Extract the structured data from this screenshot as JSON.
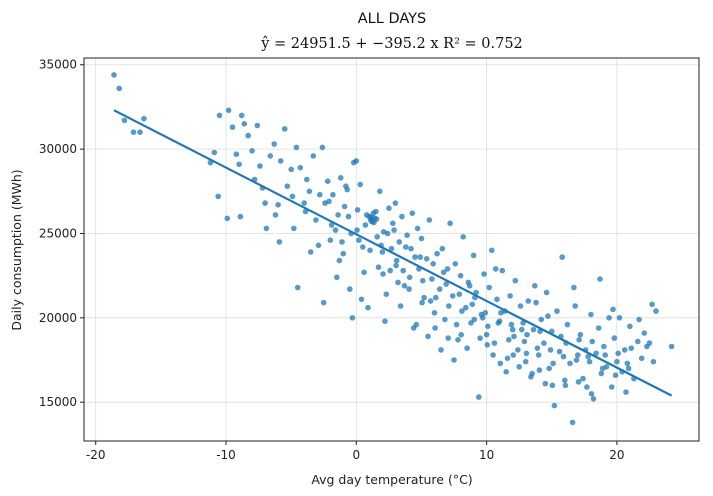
{
  "chart_data": {
    "type": "scatter",
    "title": "ALL DAYS",
    "subtitle": "ŷ = 24951.5 + −395.2 x    R² = 0.752",
    "xlabel": "Avg day temperature (°C)",
    "ylabel": "Daily consumption (MWh)",
    "xlim": [
      -20.9,
      26.3
    ],
    "ylim": [
      12700,
      35400
    ],
    "xticks": [
      -20,
      -10,
      0,
      10,
      20
    ],
    "yticks": [
      15000,
      20000,
      25000,
      30000,
      35000
    ],
    "grid": true,
    "point_color": "#1f77b4",
    "line_color": "#1f77b4",
    "fit": {
      "intercept": 24951.5,
      "slope": -395.2,
      "r2": 0.752,
      "x_range": [
        -18.6,
        24.2
      ]
    },
    "points": [
      [
        -18.6,
        34400
      ],
      [
        -18.2,
        33600
      ],
      [
        -17.8,
        31700
      ],
      [
        -17.1,
        31000
      ],
      [
        -16.6,
        31000
      ],
      [
        -16.3,
        31800
      ],
      [
        -11.2,
        29200
      ],
      [
        -10.9,
        29800
      ],
      [
        -10.5,
        32000
      ],
      [
        -10.6,
        27200
      ],
      [
        -9.8,
        32300
      ],
      [
        -9.9,
        25900
      ],
      [
        -9.5,
        31300
      ],
      [
        -9.2,
        29700
      ],
      [
        -9.0,
        29100
      ],
      [
        -8.8,
        32000
      ],
      [
        -8.6,
        31500
      ],
      [
        -8.3,
        30800
      ],
      [
        -8.0,
        29900
      ],
      [
        -7.8,
        28200
      ],
      [
        -7.6,
        31400
      ],
      [
        -7.4,
        29000
      ],
      [
        -7.0,
        26800
      ],
      [
        -6.9,
        25300
      ],
      [
        -6.6,
        29600
      ],
      [
        -6.3,
        30300
      ],
      [
        -6.0,
        26700
      ],
      [
        -5.8,
        29300
      ],
      [
        -5.5,
        31200
      ],
      [
        -5.3,
        27800
      ],
      [
        -5.0,
        28800
      ],
      [
        -4.8,
        25300
      ],
      [
        -4.6,
        30100
      ],
      [
        -4.3,
        28900
      ],
      [
        -4.0,
        26800
      ],
      [
        -3.8,
        28200
      ],
      [
        -3.6,
        27500
      ],
      [
        -3.3,
        29600
      ],
      [
        -3.1,
        25800
      ],
      [
        -2.8,
        27300
      ],
      [
        -2.6,
        30100
      ],
      [
        -2.4,
        26800
      ],
      [
        -2.2,
        28100
      ],
      [
        -2.0,
        24600
      ],
      [
        -1.8,
        27300
      ],
      [
        -1.6,
        25200
      ],
      [
        -1.4,
        26100
      ],
      [
        -1.2,
        28300
      ],
      [
        -1.0,
        23800
      ],
      [
        -0.8,
        27800
      ],
      [
        -0.6,
        26000
      ],
      [
        -0.4,
        25000
      ],
      [
        -0.2,
        29200
      ],
      [
        0.0,
        29300
      ],
      [
        0.1,
        26400
      ],
      [
        0.3,
        27900
      ],
      [
        0.5,
        24200
      ],
      [
        0.6,
        22700
      ],
      [
        0.8,
        26100
      ],
      [
        1.0,
        26000
      ],
      [
        1.1,
        25800
      ],
      [
        1.2,
        25700
      ],
      [
        1.3,
        26200
      ],
      [
        1.4,
        25900
      ],
      [
        1.5,
        26300
      ],
      [
        1.6,
        24800
      ],
      [
        1.8,
        27500
      ],
      [
        2.0,
        23900
      ],
      [
        2.1,
        25100
      ],
      [
        2.3,
        21400
      ],
      [
        2.5,
        26500
      ],
      [
        2.6,
        22800
      ],
      [
        2.8,
        25600
      ],
      [
        3.0,
        26800
      ],
      [
        3.1,
        23400
      ],
      [
        3.3,
        24500
      ],
      [
        3.5,
        26000
      ],
      [
        3.7,
        21900
      ],
      [
        3.9,
        24900
      ],
      [
        4.1,
        22400
      ],
      [
        4.3,
        26200
      ],
      [
        4.5,
        23600
      ],
      [
        4.6,
        19600
      ],
      [
        4.8,
        22900
      ],
      [
        5.0,
        24700
      ],
      [
        5.2,
        21200
      ],
      [
        5.4,
        23500
      ],
      [
        5.6,
        25800
      ],
      [
        5.8,
        22300
      ],
      [
        6.0,
        20300
      ],
      [
        6.2,
        23800
      ],
      [
        6.4,
        21700
      ],
      [
        6.6,
        24100
      ],
      [
        6.8,
        19900
      ],
      [
        7.0,
        22900
      ],
      [
        7.2,
        25600
      ],
      [
        7.4,
        21300
      ],
      [
        7.6,
        23200
      ],
      [
        7.8,
        18700
      ],
      [
        8.0,
        22500
      ],
      [
        8.2,
        24800
      ],
      [
        8.4,
        20600
      ],
      [
        8.6,
        22100
      ],
      [
        8.8,
        19700
      ],
      [
        9.0,
        23700
      ],
      [
        9.2,
        21500
      ],
      [
        9.4,
        15300
      ],
      [
        9.6,
        20200
      ],
      [
        9.8,
        22600
      ],
      [
        10.0,
        19000
      ],
      [
        10.2,
        21800
      ],
      [
        10.4,
        24000
      ],
      [
        10.6,
        18500
      ],
      [
        10.8,
        21100
      ],
      [
        11.0,
        19800
      ],
      [
        11.2,
        22800
      ],
      [
        11.4,
        20400
      ],
      [
        11.6,
        17600
      ],
      [
        11.8,
        21300
      ],
      [
        12.0,
        19300
      ],
      [
        12.2,
        22200
      ],
      [
        12.4,
        18100
      ],
      [
        12.6,
        20700
      ],
      [
        12.8,
        19700
      ],
      [
        13.0,
        17400
      ],
      [
        13.2,
        21000
      ],
      [
        13.4,
        16500
      ],
      [
        13.6,
        19300
      ],
      [
        13.8,
        20900
      ],
      [
        14.0,
        17800
      ],
      [
        14.2,
        19900
      ],
      [
        14.4,
        18500
      ],
      [
        14.6,
        21500
      ],
      [
        14.8,
        17000
      ],
      [
        15.0,
        19200
      ],
      [
        15.2,
        14800
      ],
      [
        15.4,
        20400
      ],
      [
        15.6,
        18000
      ],
      [
        15.8,
        23600
      ],
      [
        16.0,
        16300
      ],
      [
        16.2,
        19600
      ],
      [
        16.4,
        17300
      ],
      [
        16.6,
        13800
      ],
      [
        16.8,
        20700
      ],
      [
        17.0,
        17800
      ],
      [
        17.2,
        19000
      ],
      [
        17.4,
        16400
      ],
      [
        17.6,
        18100
      ],
      [
        17.8,
        17700
      ],
      [
        18.0,
        20200
      ],
      [
        18.2,
        15200
      ],
      [
        18.4,
        17900
      ],
      [
        18.6,
        19400
      ],
      [
        18.8,
        16700
      ],
      [
        19.0,
        18300
      ],
      [
        19.2,
        17100
      ],
      [
        19.4,
        20000
      ],
      [
        19.6,
        15900
      ],
      [
        19.8,
        18800
      ],
      [
        20.0,
        17400
      ],
      [
        20.2,
        20000
      ],
      [
        20.4,
        16800
      ],
      [
        20.6,
        18100
      ],
      [
        20.8,
        17300
      ],
      [
        21.0,
        19500
      ],
      [
        21.3,
        16400
      ],
      [
        21.6,
        18600
      ],
      [
        21.9,
        17600
      ],
      [
        22.1,
        19100
      ],
      [
        22.3,
        18300
      ],
      [
        22.5,
        18500
      ],
      [
        22.8,
        17400
      ],
      [
        23.0,
        20400
      ],
      [
        24.2,
        18300
      ],
      [
        -3.5,
        23900
      ],
      [
        -1.3,
        23400
      ],
      [
        -0.5,
        21700
      ],
      [
        0.9,
        20600
      ],
      [
        2.2,
        19800
      ],
      [
        3.4,
        20700
      ],
      [
        4.4,
        19400
      ],
      [
        5.5,
        18900
      ],
      [
        6.5,
        18100
      ],
      [
        7.5,
        17500
      ],
      [
        8.5,
        18200
      ],
      [
        9.5,
        18800
      ],
      [
        10.5,
        17800
      ],
      [
        11.5,
        16800
      ],
      [
        12.5,
        17100
      ],
      [
        13.5,
        16700
      ],
      [
        14.5,
        16100
      ],
      [
        -5.9,
        24500
      ],
      [
        -4.5,
        21800
      ],
      [
        -2.5,
        20900
      ],
      [
        -1.5,
        22400
      ],
      [
        -0.3,
        20000
      ],
      [
        0.4,
        21100
      ],
      [
        1.7,
        23000
      ],
      [
        2.7,
        24100
      ],
      [
        3.6,
        22800
      ],
      [
        4.7,
        25300
      ],
      [
        5.7,
        21000
      ],
      [
        6.7,
        22700
      ],
      [
        7.7,
        19600
      ],
      [
        8.7,
        21900
      ],
      [
        9.7,
        20000
      ],
      [
        10.7,
        22900
      ],
      [
        11.7,
        18700
      ],
      [
        12.7,
        19300
      ],
      [
        13.7,
        21900
      ],
      [
        14.7,
        20100
      ],
      [
        15.7,
        18900
      ],
      [
        16.7,
        21800
      ],
      [
        17.7,
        15900
      ],
      [
        18.7,
        22300
      ],
      [
        19.7,
        20500
      ],
      [
        20.7,
        15600
      ],
      [
        21.7,
        19900
      ],
      [
        22.7,
        20800
      ],
      [
        -7.2,
        27700
      ],
      [
        -3.9,
        26300
      ],
      [
        -2.9,
        24300
      ],
      [
        -0.9,
        26600
      ],
      [
        0.2,
        24600
      ],
      [
        1.9,
        24300
      ],
      [
        2.4,
        25000
      ],
      [
        3.2,
        22100
      ],
      [
        4.2,
        24100
      ],
      [
        5.1,
        22200
      ],
      [
        6.1,
        21200
      ],
      [
        7.1,
        20700
      ],
      [
        8.1,
        20400
      ],
      [
        9.1,
        21200
      ],
      [
        10.1,
        19500
      ],
      [
        11.1,
        20300
      ],
      [
        12.1,
        18900
      ],
      [
        13.1,
        19000
      ],
      [
        14.1,
        19200
      ],
      [
        15.1,
        17300
      ],
      [
        16.1,
        18500
      ],
      [
        17.1,
        18700
      ],
      [
        18.1,
        18600
      ],
      [
        19.1,
        17800
      ],
      [
        20.1,
        17900
      ],
      [
        21.1,
        18200
      ],
      [
        -8.9,
        26000
      ],
      [
        -6.2,
        26100
      ],
      [
        -4.9,
        27200
      ],
      [
        -2.1,
        26900
      ],
      [
        -0.7,
        27600
      ],
      [
        0.7,
        25500
      ],
      [
        1.15,
        25950
      ],
      [
        1.35,
        25650
      ],
      [
        1.55,
        25850
      ],
      [
        2.9,
        25200
      ],
      [
        3.8,
        24200
      ],
      [
        4.9,
        23600
      ],
      [
        5.9,
        23200
      ],
      [
        6.9,
        22000
      ],
      [
        7.9,
        21400
      ],
      [
        8.9,
        20800
      ],
      [
        9.9,
        20300
      ],
      [
        10.9,
        19700
      ],
      [
        11.9,
        19600
      ],
      [
        12.9,
        18600
      ],
      [
        13.9,
        18200
      ],
      [
        14.9,
        18100
      ],
      [
        15.9,
        17700
      ],
      [
        16.9,
        17500
      ],
      [
        17.9,
        17400
      ],
      [
        18.9,
        17000
      ],
      [
        19.9,
        16600
      ],
      [
        20.9,
        17000
      ],
      [
        -1.9,
        25500
      ],
      [
        -1.1,
        24500
      ],
      [
        0.05,
        25200
      ],
      [
        1.05,
        24000
      ],
      [
        2.05,
        22600
      ],
      [
        3.05,
        23100
      ],
      [
        4.05,
        21700
      ],
      [
        5.05,
        20900
      ],
      [
        6.05,
        19400
      ],
      [
        7.05,
        18800
      ],
      [
        8.05,
        19000
      ],
      [
        9.05,
        19900
      ],
      [
        10.05,
        18400
      ],
      [
        11.05,
        17300
      ],
      [
        12.05,
        17800
      ],
      [
        13.05,
        17900
      ],
      [
        14.05,
        16900
      ],
      [
        15.05,
        16000
      ],
      [
        16.05,
        16000
      ],
      [
        17.05,
        16200
      ],
      [
        18.05,
        15500
      ]
    ]
  }
}
